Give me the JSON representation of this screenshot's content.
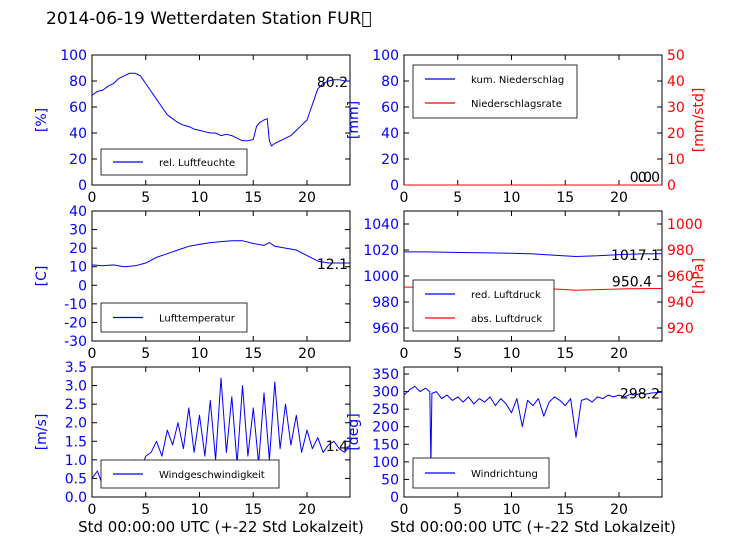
{
  "title": "2014-06-19 Wetterdaten Station FUR\u0000",
  "colors": {
    "primary": "#0000ff",
    "secondary": "#ff0000",
    "axis": "#000000"
  },
  "chart_data": [
    {
      "type": "line",
      "ylabel": "[%]",
      "xlabel": "",
      "xlim": [
        0,
        24
      ],
      "ylim": [
        0,
        100
      ],
      "xticks": [
        0,
        5,
        10,
        15,
        20
      ],
      "yticks": [
        0,
        20,
        40,
        60,
        80,
        100
      ],
      "grid": false,
      "legend_position": "lower-left",
      "last_value_label": "80.2",
      "series": [
        {
          "name": "rel. Luftfeuchte",
          "color": "#0000ff",
          "x": [
            0,
            0.5,
            1,
            1.5,
            2,
            2.5,
            3,
            3.5,
            4,
            4.5,
            5,
            5.5,
            6,
            6.5,
            7,
            7.5,
            8,
            8.5,
            9,
            9.5,
            10,
            10.5,
            11,
            11.5,
            12,
            12.5,
            13,
            13.5,
            14,
            14.5,
            15,
            15.3,
            15.6,
            16,
            16.3,
            16.5,
            16.7,
            17,
            17.5,
            18,
            18.5,
            19,
            19.5,
            20,
            20.5,
            21,
            21.5,
            22,
            22.5,
            23,
            23.5,
            24
          ],
          "y": [
            69,
            72,
            73,
            76,
            78,
            82,
            84,
            86,
            86,
            84,
            78,
            72,
            66,
            60,
            54,
            51,
            48,
            46,
            45,
            43,
            42,
            41,
            40,
            40,
            38,
            39,
            38,
            36,
            34,
            34,
            35,
            45,
            48,
            50,
            51,
            34,
            30,
            32,
            34,
            36,
            38,
            42,
            46,
            50,
            62,
            74,
            78,
            80,
            81,
            81,
            80,
            80
          ]
        }
      ]
    },
    {
      "type": "line",
      "ylabel": "[mm]",
      "y2label": "[mm/std]",
      "xlabel": "",
      "xlim": [
        0,
        24
      ],
      "ylim": [
        0,
        100
      ],
      "y2lim": [
        0,
        50
      ],
      "xticks": [
        0,
        5,
        10,
        15,
        20
      ],
      "yticks": [
        0,
        20,
        40,
        60,
        80,
        100
      ],
      "y2ticks": [
        0,
        10,
        20,
        30,
        40,
        50
      ],
      "grid": false,
      "legend_position": "upper-left",
      "last_value_label": "0.0",
      "last_value_label_2": "0.0",
      "series": [
        {
          "name": "kum. Niederschlag",
          "color": "#0000ff",
          "axis": "left",
          "x": [
            0,
            24
          ],
          "y": [
            0,
            0
          ]
        },
        {
          "name": "Niederschlagsrate",
          "color": "#ff0000",
          "axis": "right",
          "x": [
            0,
            24
          ],
          "y": [
            0,
            0
          ]
        }
      ]
    },
    {
      "type": "line",
      "ylabel": "[C]",
      "xlabel": "",
      "xlim": [
        0,
        24
      ],
      "ylim": [
        -30,
        40
      ],
      "xticks": [
        0,
        5,
        10,
        15,
        20
      ],
      "yticks": [
        -30,
        -20,
        -10,
        0,
        10,
        20,
        30,
        40
      ],
      "grid": false,
      "legend_position": "lower-left",
      "last_value_label": "12.1",
      "series": [
        {
          "name": "Lufttemperatur",
          "color": "#0000ff",
          "x": [
            0,
            1,
            2,
            3,
            4,
            5,
            6,
            7,
            8,
            9,
            10,
            11,
            12,
            13,
            14,
            15,
            16,
            16.5,
            17,
            18,
            19,
            20,
            21,
            22,
            23,
            24
          ],
          "y": [
            11,
            10.5,
            11,
            10,
            10.5,
            12,
            15,
            17,
            19,
            21,
            22,
            23,
            23.5,
            24,
            24,
            22.5,
            21.5,
            23,
            21,
            20,
            19,
            16,
            13,
            12,
            12,
            12
          ]
        }
      ]
    },
    {
      "type": "line",
      "ylabel": "",
      "y2label": "[hPa]",
      "xlabel": "",
      "xlim": [
        0,
        24
      ],
      "ylim": [
        950,
        1050
      ],
      "y2lim": [
        910,
        1010
      ],
      "xticks": [
        0,
        5,
        10,
        15,
        20
      ],
      "yticks": [
        960,
        980,
        1000,
        1020,
        1040
      ],
      "y2ticks": [
        920,
        940,
        960,
        980,
        1000
      ],
      "grid": false,
      "legend_position": "lower-left",
      "last_value_label": "1017.1",
      "last_value_label_2": "950.4",
      "series": [
        {
          "name": "red. Luftdruck",
          "color": "#0000ff",
          "axis": "left",
          "x": [
            0,
            2,
            4,
            6,
            8,
            10,
            12,
            14,
            16,
            18,
            20,
            22,
            24
          ],
          "y": [
            1018.5,
            1018.5,
            1018.3,
            1018,
            1017.8,
            1017.5,
            1017,
            1016,
            1015,
            1015.5,
            1016.5,
            1017,
            1017.1
          ]
        },
        {
          "name": "abs. Luftdruck",
          "color": "#ff0000",
          "axis": "right",
          "x": [
            0,
            2,
            4,
            6,
            8,
            10,
            12,
            14,
            16,
            18,
            20,
            22,
            24
          ],
          "y": [
            951.5,
            951.5,
            951.5,
            951.7,
            952,
            951.5,
            951,
            950,
            949,
            949.5,
            950,
            950.3,
            950.4
          ]
        }
      ]
    },
    {
      "type": "line",
      "ylabel": "[m/s]",
      "xlabel": "Std 00:00:00 UTC (+-22 Std Lokalzeit)",
      "xlim": [
        0,
        24
      ],
      "ylim": [
        0,
        3.5
      ],
      "xticks": [
        0,
        5,
        10,
        15,
        20
      ],
      "yticks": [
        0.0,
        0.5,
        1.0,
        1.5,
        2.0,
        2.5,
        3.0,
        3.5
      ],
      "grid": false,
      "legend_position": "lower-left",
      "last_value_label": "1.4",
      "series": [
        {
          "name": "Windgeschwindigkeit",
          "color": "#0000ff",
          "x": [
            0,
            0.5,
            1,
            1.5,
            2,
            2.5,
            3,
            3.5,
            4,
            4.5,
            5,
            5.5,
            6,
            6.5,
            7,
            7.5,
            8,
            8.5,
            9,
            9.5,
            10,
            10.5,
            11,
            11.5,
            12,
            12.5,
            13,
            13.5,
            14,
            14.5,
            15,
            15.5,
            16,
            16.5,
            17,
            17.5,
            18,
            18.5,
            19,
            19.5,
            20,
            20.5,
            21,
            21.5,
            22,
            22.5,
            23,
            23.5,
            24
          ],
          "y": [
            0.5,
            0.7,
            0.3,
            0.6,
            0.9,
            0.4,
            0.8,
            0.6,
            1.0,
            0.7,
            1.1,
            1.2,
            1.5,
            1.1,
            1.8,
            1.4,
            2.0,
            1.3,
            2.4,
            1.2,
            2.2,
            1.1,
            2.6,
            1.0,
            3.2,
            1.2,
            2.7,
            0.9,
            3.0,
            1.1,
            2.4,
            0.9,
            2.8,
            1.0,
            3.1,
            1.3,
            2.5,
            1.4,
            2.2,
            1.2,
            1.8,
            1.3,
            1.6,
            1.2,
            1.4,
            1.5,
            1.3,
            1.2,
            1.4
          ]
        }
      ]
    },
    {
      "type": "line",
      "ylabel": "[deg]",
      "xlabel": "Std 00:00:00 UTC (+-22 Std Lokalzeit)",
      "xlim": [
        0,
        24
      ],
      "ylim": [
        0,
        370
      ],
      "xticks": [
        0,
        5,
        10,
        15,
        20
      ],
      "yticks": [
        0,
        50,
        100,
        150,
        200,
        250,
        300,
        350
      ],
      "grid": false,
      "legend_position": "lower-left",
      "last_value_label": "298.2",
      "series": [
        {
          "name": "Windrichtung",
          "color": "#0000ff",
          "x": [
            0,
            0.5,
            1,
            1.5,
            2,
            2.4,
            2.5,
            2.6,
            3,
            3.5,
            4,
            4.5,
            5,
            5.5,
            6,
            6.5,
            7,
            7.5,
            8,
            8.5,
            9,
            9.5,
            10,
            10.5,
            11,
            11.5,
            12,
            12.5,
            13,
            13.5,
            14,
            14.5,
            15,
            15.5,
            16,
            16.5,
            17,
            17.5,
            18,
            18.5,
            19,
            19.5,
            20,
            20.5,
            21,
            21.5,
            22,
            22.5,
            23,
            23.5,
            24
          ],
          "y": [
            290,
            305,
            315,
            300,
            310,
            300,
            90,
            295,
            300,
            280,
            290,
            275,
            285,
            270,
            285,
            265,
            280,
            270,
            285,
            260,
            280,
            265,
            240,
            280,
            200,
            275,
            260,
            280,
            230,
            270,
            285,
            275,
            260,
            280,
            170,
            275,
            280,
            270,
            285,
            280,
            290,
            285,
            290,
            285,
            292,
            290,
            295,
            293,
            296,
            297,
            298
          ]
        }
      ]
    }
  ]
}
